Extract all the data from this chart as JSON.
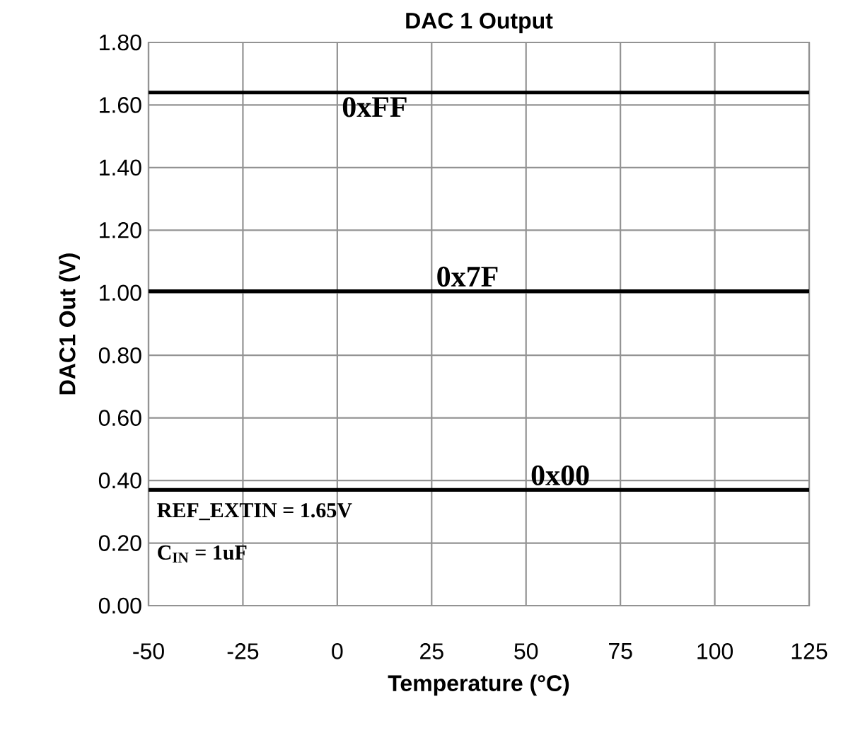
{
  "chart_data": {
    "type": "line",
    "title": "DAC 1 Output",
    "xlabel": "Temperature (°C)",
    "ylabel": "DAC1 Out (V)",
    "x": [
      -50,
      -25,
      0,
      25,
      50,
      75,
      100,
      125
    ],
    "series": [
      {
        "name": "0xFF",
        "color": "#000000",
        "values": [
          1.64,
          1.64,
          1.64,
          1.64,
          1.64,
          1.64,
          1.64,
          1.64
        ]
      },
      {
        "name": "0x7F",
        "color": "#000000",
        "values": [
          1.005,
          1.005,
          1.005,
          1.005,
          1.005,
          1.005,
          1.005,
          1.005
        ]
      },
      {
        "name": "0x00",
        "color": "#000000",
        "values": [
          0.37,
          0.37,
          0.37,
          0.37,
          0.37,
          0.37,
          0.37,
          0.37
        ]
      }
    ],
    "xlim": [
      -50,
      125
    ],
    "ylim": [
      0,
      1.8
    ],
    "xticks": [
      -50,
      -25,
      0,
      25,
      50,
      75,
      100,
      125
    ],
    "yticks": [
      {
        "value": 0,
        "label": "0.00"
      },
      {
        "value": 0.2,
        "label": "0.20"
      },
      {
        "value": 0.4,
        "label": "0.40"
      },
      {
        "value": 0.6,
        "label": "0.60"
      },
      {
        "value": 0.8,
        "label": "0.80"
      },
      {
        "value": 1.0,
        "label": "1.00"
      },
      {
        "value": 1.2,
        "label": "1.20"
      },
      {
        "value": 1.4,
        "label": "1.40"
      },
      {
        "value": 1.6,
        "label": "1.60"
      },
      {
        "value": 1.8,
        "label": "1.80"
      }
    ],
    "grid": true,
    "legend": false,
    "marker": "none",
    "line_style": "solid",
    "annotations": [
      "REF_EXTIN = 1.65V",
      "C$_{IN}$ = 1uF"
    ]
  }
}
